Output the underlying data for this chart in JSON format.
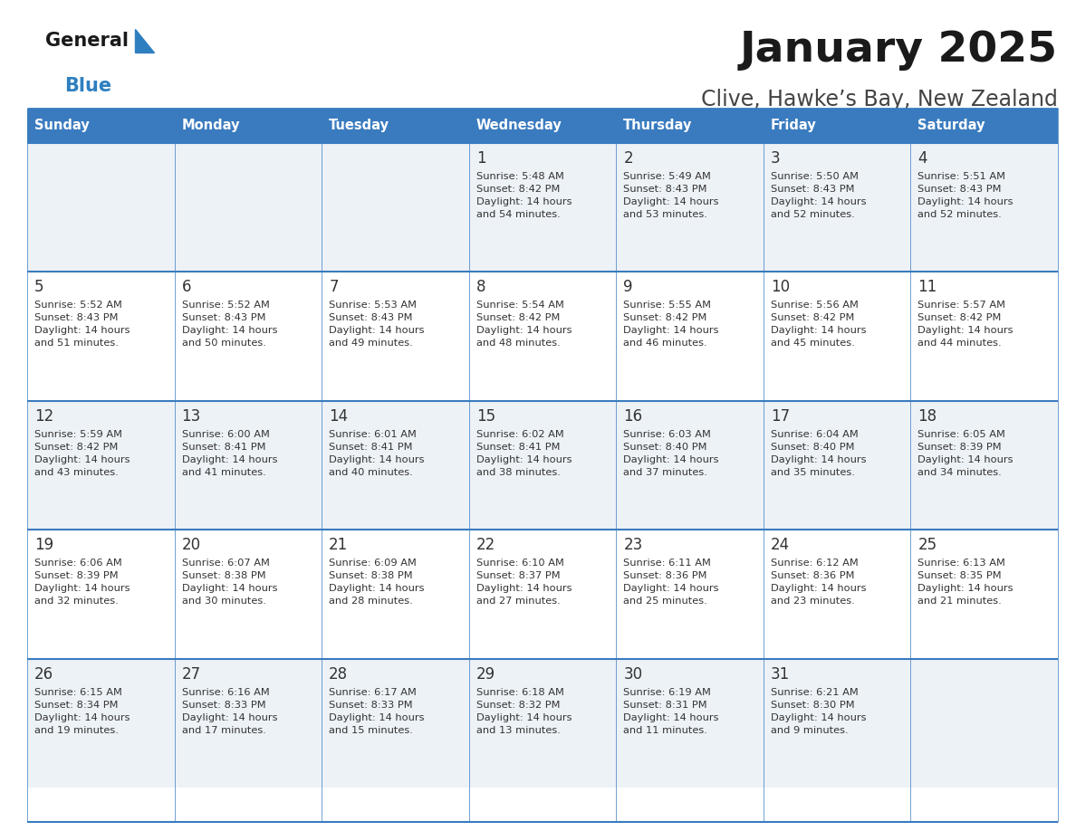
{
  "title": "January 2025",
  "subtitle": "Clive, Hawke’s Bay, New Zealand",
  "days_of_week": [
    "Sunday",
    "Monday",
    "Tuesday",
    "Wednesday",
    "Thursday",
    "Friday",
    "Saturday"
  ],
  "header_bg": "#3a7bbf",
  "header_text": "#ffffff",
  "row_bg_odd": "#edf2f7",
  "row_bg_even": "#ffffff",
  "cell_border": "#3a7bbf",
  "day_number_color": "#333333",
  "info_text_color": "#333333",
  "title_color": "#1a1a1a",
  "subtitle_color": "#444444",
  "generalblue_black": "#1a1a1a",
  "generalblue_blue": "#2e7fc0",
  "calendar_data": [
    [
      {
        "day": null,
        "info": ""
      },
      {
        "day": null,
        "info": ""
      },
      {
        "day": null,
        "info": ""
      },
      {
        "day": 1,
        "info": "Sunrise: 5:48 AM\nSunset: 8:42 PM\nDaylight: 14 hours\nand 54 minutes."
      },
      {
        "day": 2,
        "info": "Sunrise: 5:49 AM\nSunset: 8:43 PM\nDaylight: 14 hours\nand 53 minutes."
      },
      {
        "day": 3,
        "info": "Sunrise: 5:50 AM\nSunset: 8:43 PM\nDaylight: 14 hours\nand 52 minutes."
      },
      {
        "day": 4,
        "info": "Sunrise: 5:51 AM\nSunset: 8:43 PM\nDaylight: 14 hours\nand 52 minutes."
      }
    ],
    [
      {
        "day": 5,
        "info": "Sunrise: 5:52 AM\nSunset: 8:43 PM\nDaylight: 14 hours\nand 51 minutes."
      },
      {
        "day": 6,
        "info": "Sunrise: 5:52 AM\nSunset: 8:43 PM\nDaylight: 14 hours\nand 50 minutes."
      },
      {
        "day": 7,
        "info": "Sunrise: 5:53 AM\nSunset: 8:43 PM\nDaylight: 14 hours\nand 49 minutes."
      },
      {
        "day": 8,
        "info": "Sunrise: 5:54 AM\nSunset: 8:42 PM\nDaylight: 14 hours\nand 48 minutes."
      },
      {
        "day": 9,
        "info": "Sunrise: 5:55 AM\nSunset: 8:42 PM\nDaylight: 14 hours\nand 46 minutes."
      },
      {
        "day": 10,
        "info": "Sunrise: 5:56 AM\nSunset: 8:42 PM\nDaylight: 14 hours\nand 45 minutes."
      },
      {
        "day": 11,
        "info": "Sunrise: 5:57 AM\nSunset: 8:42 PM\nDaylight: 14 hours\nand 44 minutes."
      }
    ],
    [
      {
        "day": 12,
        "info": "Sunrise: 5:59 AM\nSunset: 8:42 PM\nDaylight: 14 hours\nand 43 minutes."
      },
      {
        "day": 13,
        "info": "Sunrise: 6:00 AM\nSunset: 8:41 PM\nDaylight: 14 hours\nand 41 minutes."
      },
      {
        "day": 14,
        "info": "Sunrise: 6:01 AM\nSunset: 8:41 PM\nDaylight: 14 hours\nand 40 minutes."
      },
      {
        "day": 15,
        "info": "Sunrise: 6:02 AM\nSunset: 8:41 PM\nDaylight: 14 hours\nand 38 minutes."
      },
      {
        "day": 16,
        "info": "Sunrise: 6:03 AM\nSunset: 8:40 PM\nDaylight: 14 hours\nand 37 minutes."
      },
      {
        "day": 17,
        "info": "Sunrise: 6:04 AM\nSunset: 8:40 PM\nDaylight: 14 hours\nand 35 minutes."
      },
      {
        "day": 18,
        "info": "Sunrise: 6:05 AM\nSunset: 8:39 PM\nDaylight: 14 hours\nand 34 minutes."
      }
    ],
    [
      {
        "day": 19,
        "info": "Sunrise: 6:06 AM\nSunset: 8:39 PM\nDaylight: 14 hours\nand 32 minutes."
      },
      {
        "day": 20,
        "info": "Sunrise: 6:07 AM\nSunset: 8:38 PM\nDaylight: 14 hours\nand 30 minutes."
      },
      {
        "day": 21,
        "info": "Sunrise: 6:09 AM\nSunset: 8:38 PM\nDaylight: 14 hours\nand 28 minutes."
      },
      {
        "day": 22,
        "info": "Sunrise: 6:10 AM\nSunset: 8:37 PM\nDaylight: 14 hours\nand 27 minutes."
      },
      {
        "day": 23,
        "info": "Sunrise: 6:11 AM\nSunset: 8:36 PM\nDaylight: 14 hours\nand 25 minutes."
      },
      {
        "day": 24,
        "info": "Sunrise: 6:12 AM\nSunset: 8:36 PM\nDaylight: 14 hours\nand 23 minutes."
      },
      {
        "day": 25,
        "info": "Sunrise: 6:13 AM\nSunset: 8:35 PM\nDaylight: 14 hours\nand 21 minutes."
      }
    ],
    [
      {
        "day": 26,
        "info": "Sunrise: 6:15 AM\nSunset: 8:34 PM\nDaylight: 14 hours\nand 19 minutes."
      },
      {
        "day": 27,
        "info": "Sunrise: 6:16 AM\nSunset: 8:33 PM\nDaylight: 14 hours\nand 17 minutes."
      },
      {
        "day": 28,
        "info": "Sunrise: 6:17 AM\nSunset: 8:33 PM\nDaylight: 14 hours\nand 15 minutes."
      },
      {
        "day": 29,
        "info": "Sunrise: 6:18 AM\nSunset: 8:32 PM\nDaylight: 14 hours\nand 13 minutes."
      },
      {
        "day": 30,
        "info": "Sunrise: 6:19 AM\nSunset: 8:31 PM\nDaylight: 14 hours\nand 11 minutes."
      },
      {
        "day": 31,
        "info": "Sunrise: 6:21 AM\nSunset: 8:30 PM\nDaylight: 14 hours\nand 9 minutes."
      },
      {
        "day": null,
        "info": ""
      }
    ]
  ],
  "fig_width": 11.88,
  "fig_height": 9.18,
  "dpi": 100
}
